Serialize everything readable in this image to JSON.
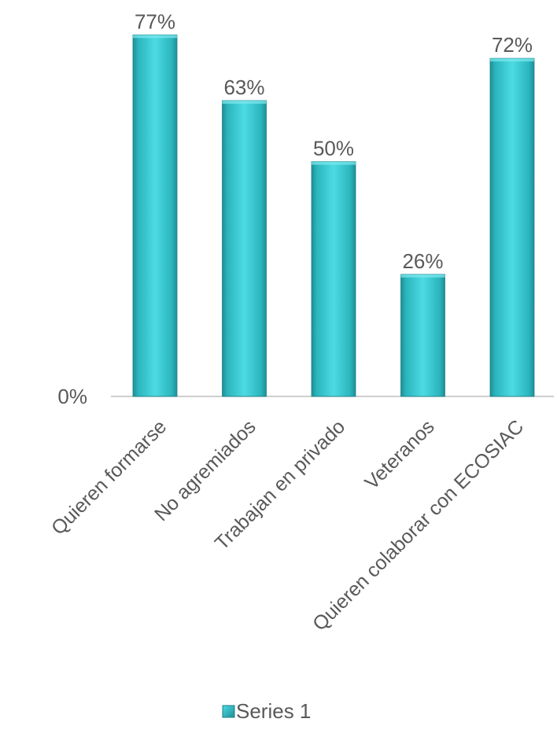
{
  "chart_data": {
    "type": "bar",
    "categories": [
      "Quieren formarse",
      "No agremiados",
      "Trabajan en privado",
      "Veteranos",
      "Quieren colaborar con ECOSIAC"
    ],
    "series": [
      {
        "name": "Series 1",
        "values": [
          0.77,
          0.63,
          0.5,
          0.26,
          0.72
        ]
      }
    ],
    "data_labels": [
      "77%",
      "63%",
      "50%",
      "26%",
      "72%"
    ],
    "y_tick_labels": [
      "0%"
    ],
    "ylim": [
      0,
      0.8
    ],
    "grid": false,
    "legend_position": "bottom",
    "colors": {
      "bar_light": "#4ddbe3",
      "bar_mid": "#2bb5bd",
      "bar_dark": "#1e8f96",
      "axis": "#bfbfbf",
      "text": "#595959"
    }
  }
}
